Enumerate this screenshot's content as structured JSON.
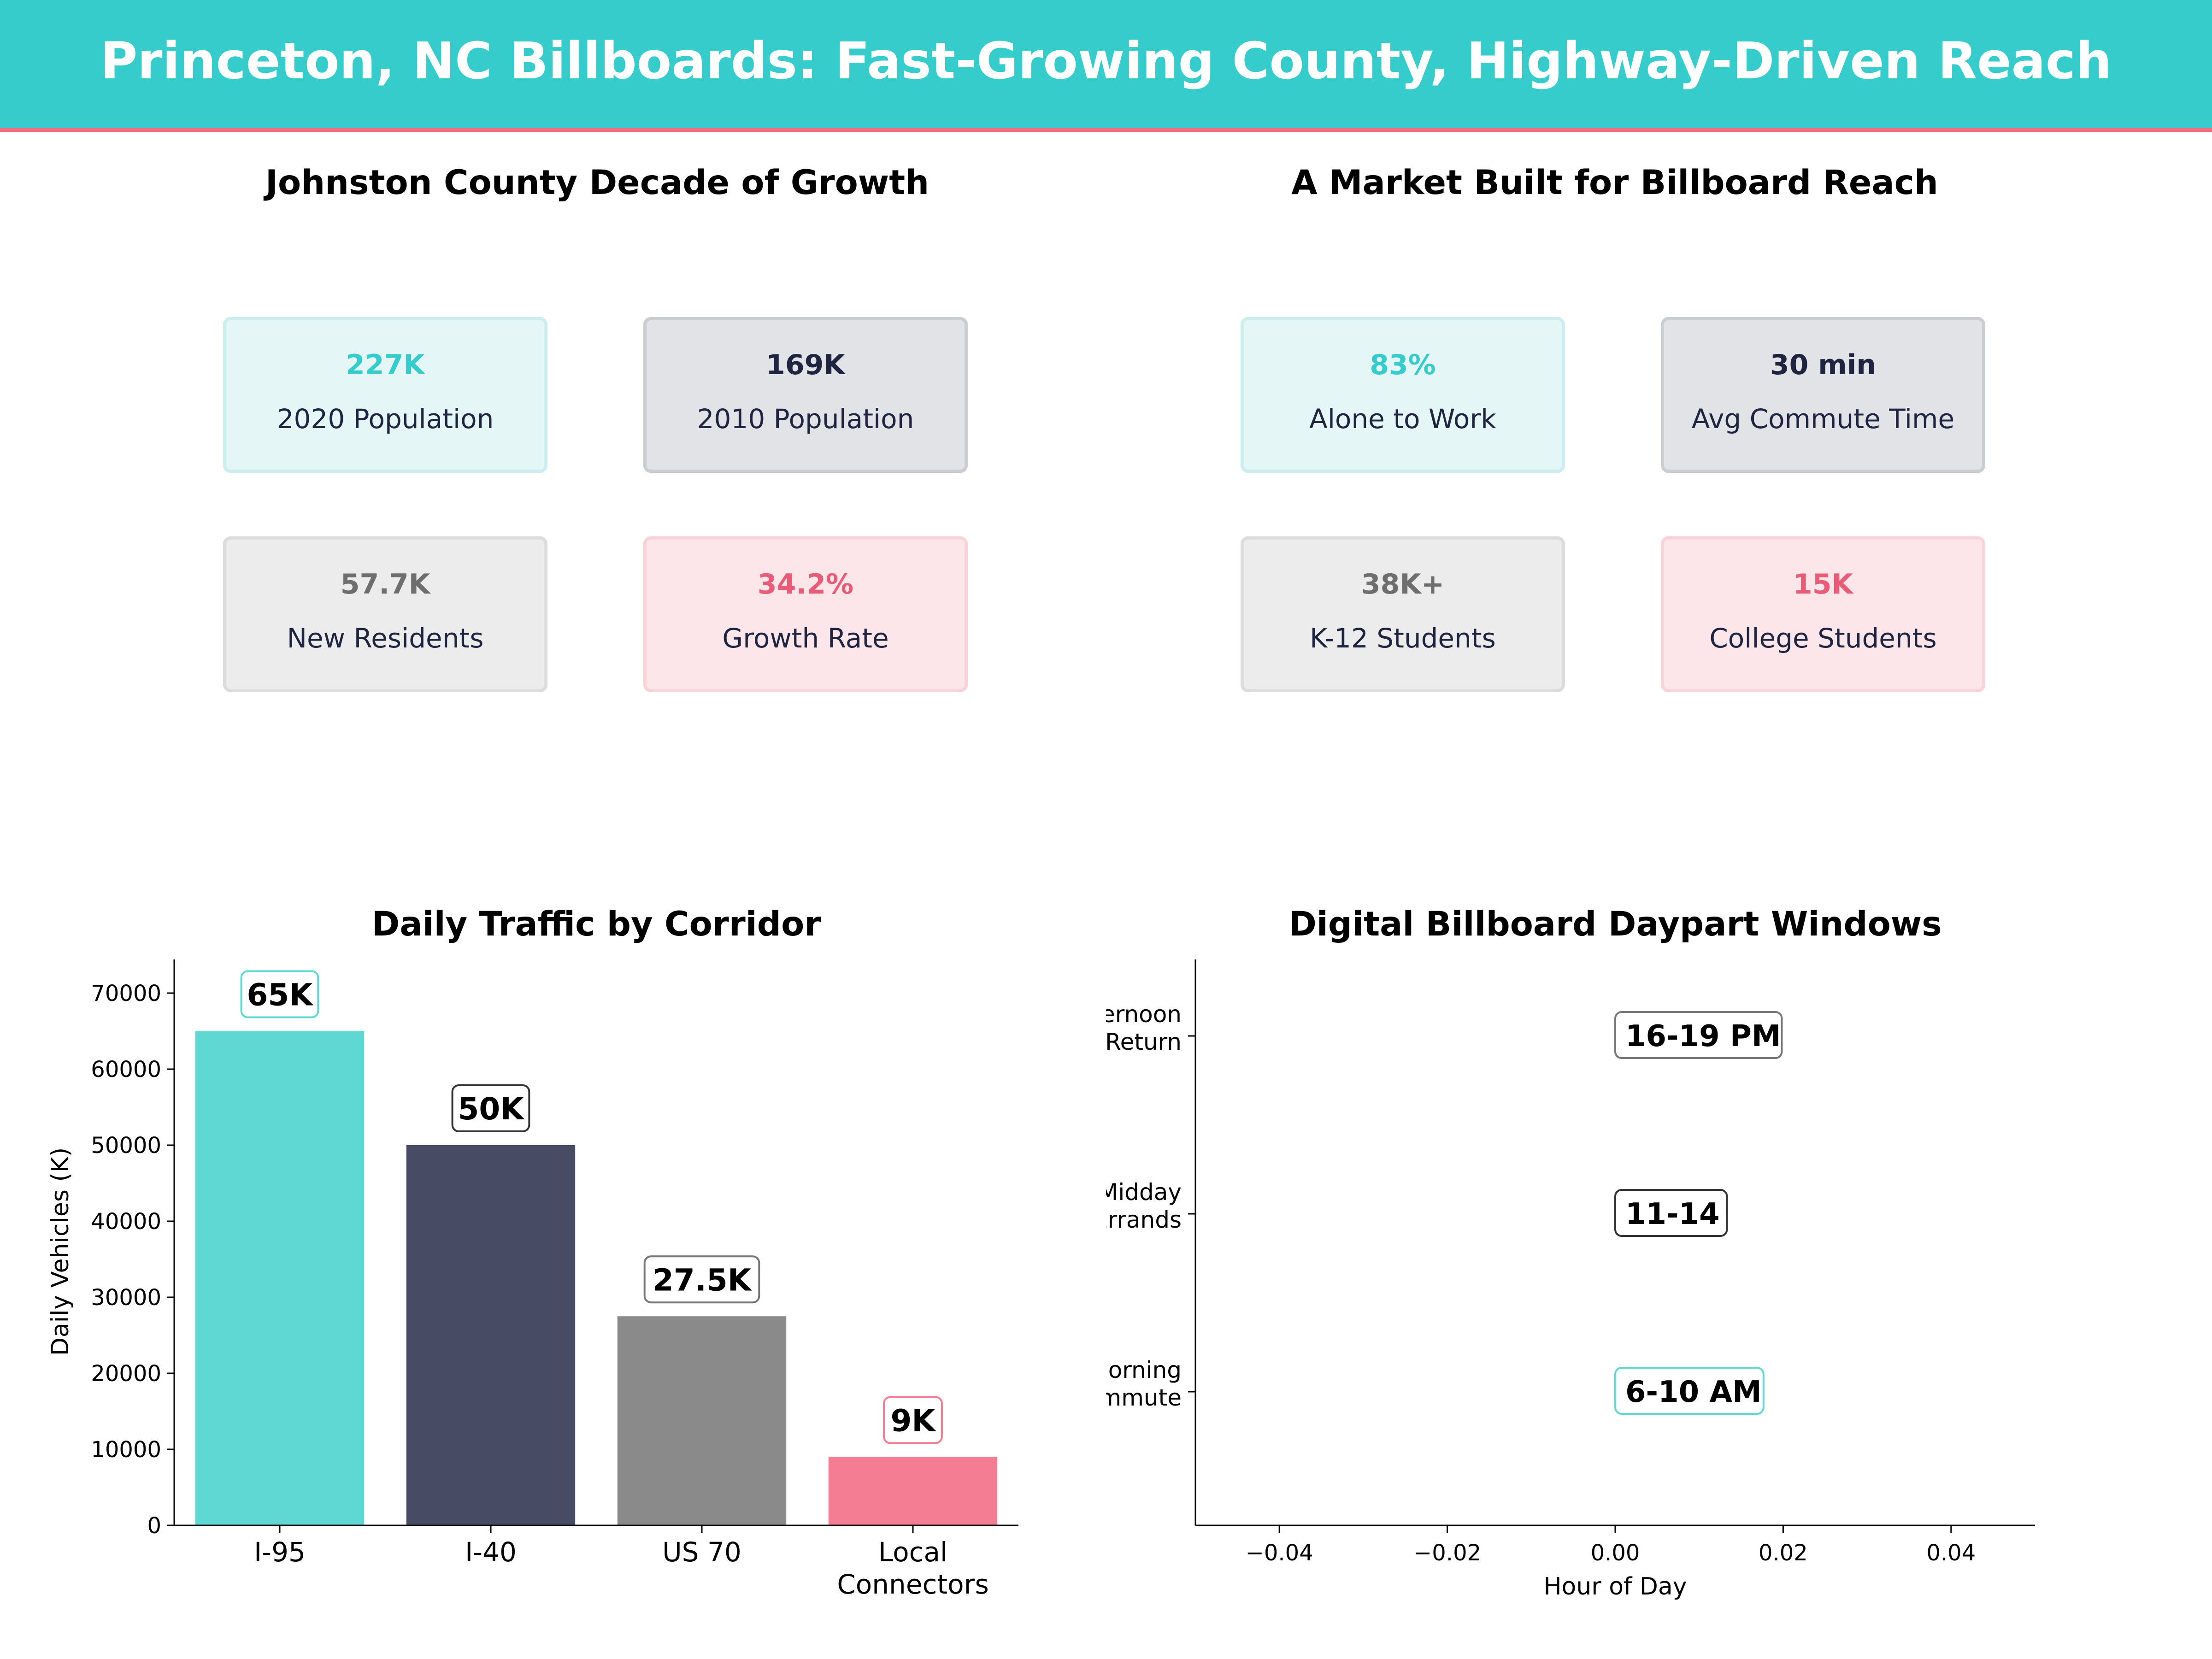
{
  "header": {
    "title": "Princeton, NC Billboards: Fast-Growing County, Highway-Driven Reach"
  },
  "growth_panel": {
    "title": "Johnston County Decade of Growth",
    "cards": [
      {
        "value": "227K",
        "label": "2020 Population",
        "tone": "teal"
      },
      {
        "value": "169K",
        "label": "2010 Population",
        "tone": "navy"
      },
      {
        "value": "57.7K",
        "label": "New Residents",
        "tone": "gray"
      },
      {
        "value": "34.2%",
        "label": "Growth Rate",
        "tone": "pink"
      }
    ]
  },
  "market_panel": {
    "title": "A Market Built for Billboard Reach",
    "cards": [
      {
        "value": "83%",
        "label": "Alone to Work",
        "tone": "teal"
      },
      {
        "value": "30 min",
        "label": "Avg Commute Time",
        "tone": "navy"
      },
      {
        "value": "38K+",
        "label": "K-12 Students",
        "tone": "gray"
      },
      {
        "value": "15K",
        "label": "College Students",
        "tone": "pink"
      }
    ]
  },
  "colors": {
    "teal": "#5fd8d4",
    "navy": "#474b63",
    "gray": "#8a8a8a",
    "pink": "#f47d93",
    "header": "#36cccc",
    "header_rule": "#f0707f"
  },
  "chart_data": [
    {
      "type": "bar",
      "title": "Daily Traffic by Corridor",
      "ylabel": "Daily Vehicles (K)",
      "xlabel": "",
      "categories": [
        "I-95",
        "I-40",
        "US 70",
        "Local\nConnectors"
      ],
      "values": [
        65000,
        50000,
        27500,
        9000
      ],
      "data_labels": [
        "65K",
        "50K",
        "27.5K",
        "9K"
      ],
      "bar_colors": [
        "#5fd8d4",
        "#474b63",
        "#8a8a8a",
        "#f47d93"
      ],
      "label_edge_colors": [
        "#5fd8d4",
        "#333333",
        "#777777",
        "#f47d93"
      ],
      "ylim": [
        0,
        72000
      ],
      "yticks": [
        0,
        10000,
        20000,
        30000,
        40000,
        50000,
        60000,
        70000
      ],
      "grid": false
    },
    {
      "type": "scatter",
      "title": "Digital Billboard Daypart Windows",
      "xlabel": "Hour of Day",
      "ylabel": "",
      "categories": [
        "Morning\nCommute",
        "Midday\nErrands",
        "Afternoon\nReturn"
      ],
      "x": [
        0,
        0,
        0
      ],
      "data_labels": [
        "6-10 AM",
        "11-14",
        "16-19 PM"
      ],
      "label_edge_colors": [
        "#5fd8d4",
        "#333333",
        "#777777"
      ],
      "xlim": [
        -0.05,
        0.05
      ],
      "xticks": [
        -0.04,
        -0.02,
        0.0,
        0.02,
        0.04
      ],
      "xtick_labels": [
        "−0.04",
        "−0.02",
        "0.00",
        "0.02",
        "0.04"
      ],
      "grid": false
    }
  ]
}
